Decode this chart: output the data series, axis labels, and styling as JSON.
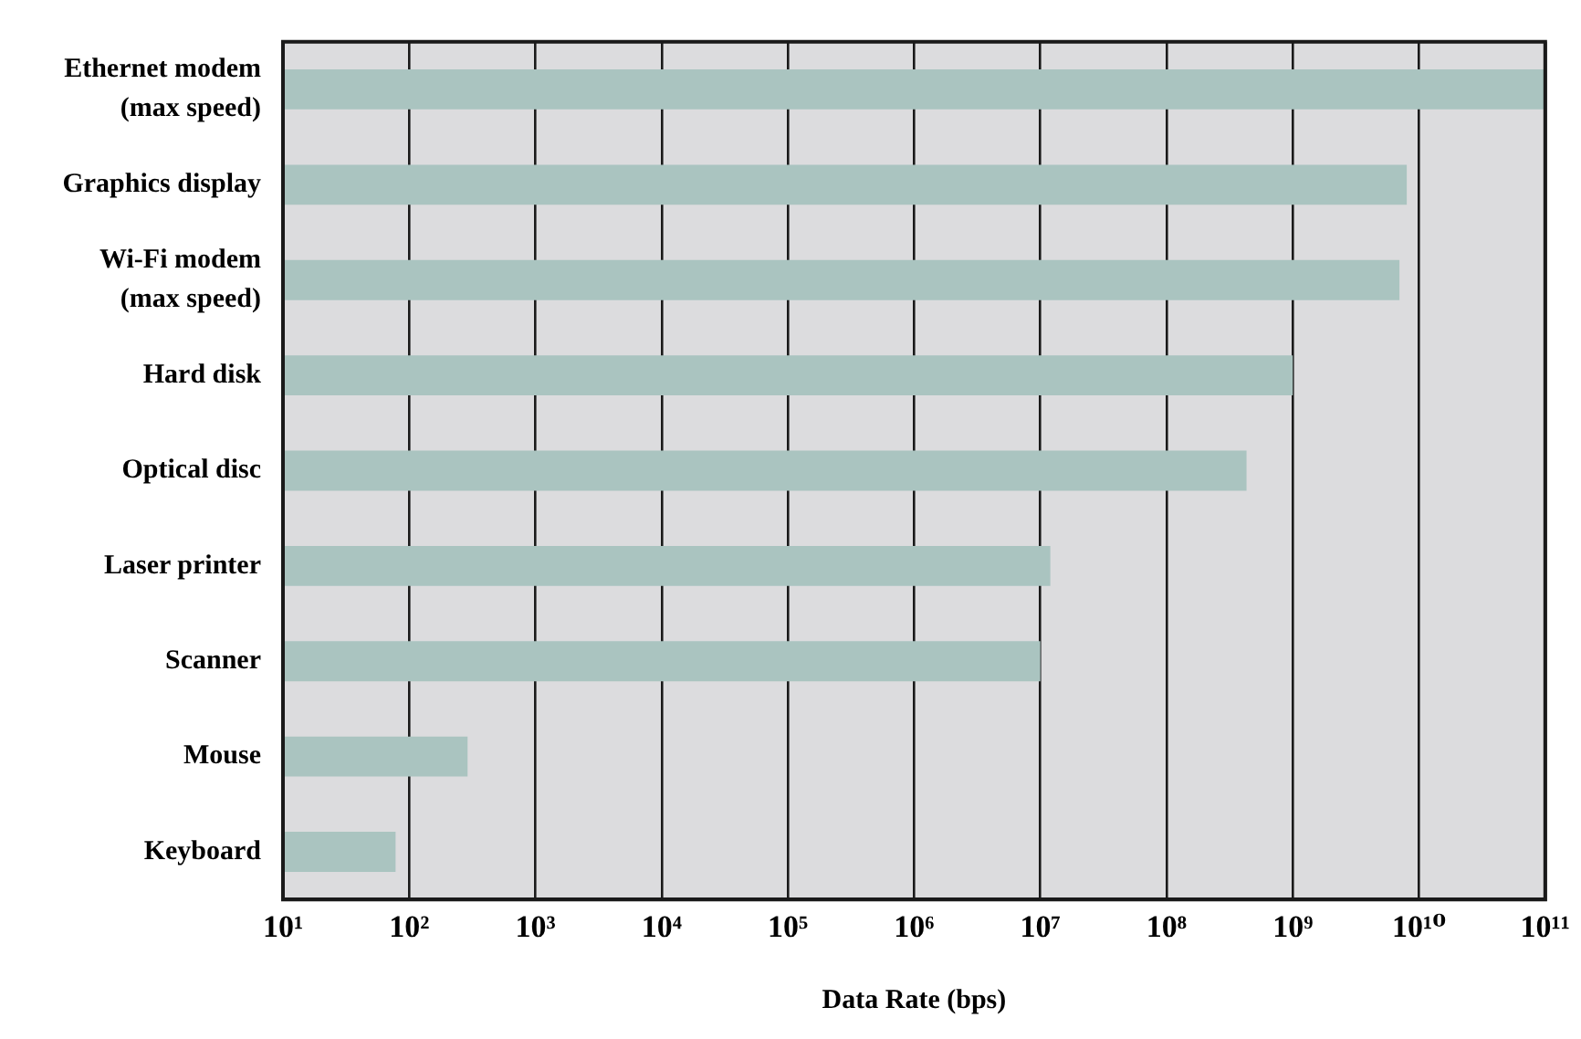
{
  "chart_data": {
    "type": "bar",
    "orientation": "horizontal",
    "log": "x",
    "xlabel": "Data Rate (bps)",
    "categories": [
      "Ethernet modem\n(max speed)",
      "Graphics display",
      "Wi-Fi modem\n(max speed)",
      "Hard disk",
      "Optical disc",
      "Laser printer",
      "Scanner",
      "Mouse",
      "Keyboard"
    ],
    "values": [
      100000000000,
      8000000000,
      7000000000,
      1000000000,
      430000000,
      12000000,
      10000000,
      290,
      78
    ],
    "color": "#aac4c0",
    "xlim": [
      10,
      100000000000
    ],
    "xticks": [
      {
        "value": 10,
        "label": "10¹"
      },
      {
        "value": 100,
        "label": "10²"
      },
      {
        "value": 1000,
        "label": "10³"
      },
      {
        "value": 10000,
        "label": "10⁴"
      },
      {
        "value": 100000,
        "label": "10⁵"
      },
      {
        "value": 1000000,
        "label": "10⁶"
      },
      {
        "value": 10000000,
        "label": "10⁷"
      },
      {
        "value": 100000000,
        "label": "10⁸"
      },
      {
        "value": 1000000000,
        "label": "10⁹"
      },
      {
        "value": 10000000000,
        "label": "10¹⁰"
      },
      {
        "value": 100000000000,
        "label": "10¹¹"
      }
    ],
    "grid": "x",
    "legend": false
  }
}
